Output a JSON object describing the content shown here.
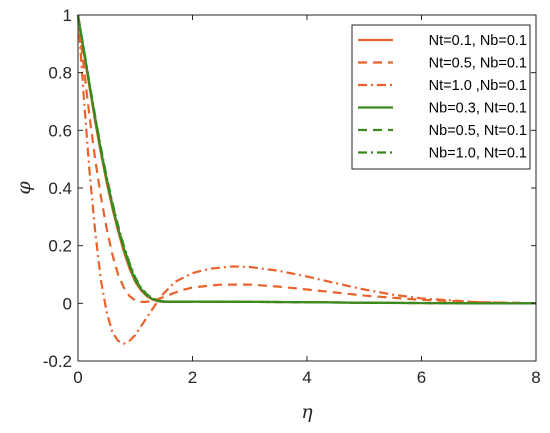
{
  "chart_data": {
    "type": "line",
    "title": "",
    "xlabel": "η",
    "ylabel": "φ",
    "xlim": [
      0,
      8
    ],
    "ylim": [
      -0.2,
      1
    ],
    "xticks": [
      "0",
      "2",
      "4",
      "6",
      "8"
    ],
    "yticks": [
      "-0.2",
      "0",
      "0.2",
      "0.4",
      "0.6",
      "0.8",
      "1"
    ],
    "grid": false,
    "legend_position": "top-right",
    "series": [
      {
        "name": "Nt=0.1, Nb=0.1",
        "color": "#e8622c",
        "dash": "solid",
        "x": [
          0,
          0.1,
          0.2,
          0.3,
          0.4,
          0.5,
          0.6,
          0.7,
          0.8,
          0.9,
          1.0,
          1.1,
          1.2,
          1.3,
          1.4,
          1.5,
          1.7,
          2.0,
          3.0,
          4.0,
          5.0,
          6.0,
          7.0,
          8.0
        ],
        "y": [
          1.0,
          0.87,
          0.75,
          0.63,
          0.52,
          0.42,
          0.33,
          0.25,
          0.18,
          0.12,
          0.075,
          0.045,
          0.025,
          0.013,
          0.007,
          0.005,
          0.005,
          0.006,
          0.005,
          0.004,
          0.002,
          0.001,
          0.0,
          0.0
        ]
      },
      {
        "name": "Nt=0.5, Nb=0.1",
        "color": "#e8622c",
        "dash": "dashed",
        "x": [
          0,
          0.1,
          0.2,
          0.3,
          0.4,
          0.5,
          0.6,
          0.7,
          0.8,
          0.9,
          1.0,
          1.1,
          1.2,
          1.3,
          1.4,
          1.6,
          1.8,
          2.0,
          2.5,
          3.0,
          3.5,
          4.0,
          5.0,
          6.0,
          7.0,
          8.0
        ],
        "y": [
          1.0,
          0.82,
          0.65,
          0.5,
          0.37,
          0.26,
          0.17,
          0.1,
          0.055,
          0.025,
          0.01,
          0.005,
          0.005,
          0.009,
          0.015,
          0.03,
          0.045,
          0.055,
          0.065,
          0.065,
          0.058,
          0.048,
          0.027,
          0.012,
          0.004,
          0.0
        ]
      },
      {
        "name": "Nt=1.0 ,Nb=0.1",
        "color": "#e8622c",
        "dash": "dashdot",
        "x": [
          0,
          0.1,
          0.2,
          0.3,
          0.4,
          0.5,
          0.6,
          0.7,
          0.8,
          0.9,
          1.0,
          1.1,
          1.2,
          1.3,
          1.4,
          1.5,
          1.7,
          2.0,
          2.3,
          2.7,
          3.0,
          3.5,
          4.0,
          4.5,
          5.0,
          5.5,
          6.0,
          7.0,
          8.0
        ],
        "y": [
          1.0,
          0.72,
          0.46,
          0.25,
          0.08,
          -0.03,
          -0.1,
          -0.13,
          -0.14,
          -0.13,
          -0.11,
          -0.08,
          -0.05,
          -0.02,
          0.01,
          0.035,
          0.075,
          0.105,
          0.12,
          0.128,
          0.126,
          0.113,
          0.093,
          0.07,
          0.048,
          0.03,
          0.017,
          0.004,
          0.0
        ]
      },
      {
        "name": "Nb=0.3, Nt=0.1",
        "color": "#3a8a1f",
        "dash": "solid",
        "x": [
          0,
          0.1,
          0.2,
          0.3,
          0.4,
          0.5,
          0.6,
          0.7,
          0.8,
          0.9,
          1.0,
          1.1,
          1.2,
          1.3,
          1.4,
          1.5,
          1.7,
          2.0,
          3.0,
          4.0,
          5.0,
          6.0,
          7.0,
          8.0
        ],
        "y": [
          1.0,
          0.88,
          0.76,
          0.64,
          0.53,
          0.43,
          0.34,
          0.26,
          0.19,
          0.13,
          0.08,
          0.05,
          0.028,
          0.015,
          0.008,
          0.006,
          0.005,
          0.006,
          0.005,
          0.004,
          0.002,
          0.001,
          0.0,
          0.0
        ]
      },
      {
        "name": "Nb=0.5, Nt=0.1",
        "color": "#3a8a1f",
        "dash": "dashed",
        "x": [
          0,
          0.1,
          0.2,
          0.3,
          0.4,
          0.5,
          0.6,
          0.7,
          0.8,
          0.9,
          1.0,
          1.1,
          1.2,
          1.3,
          1.4,
          1.5,
          1.7,
          2.0,
          3.0,
          4.0,
          5.0,
          6.0,
          7.0,
          8.0
        ],
        "y": [
          1.0,
          0.88,
          0.76,
          0.645,
          0.535,
          0.435,
          0.345,
          0.265,
          0.195,
          0.135,
          0.085,
          0.052,
          0.03,
          0.016,
          0.009,
          0.006,
          0.005,
          0.006,
          0.005,
          0.004,
          0.002,
          0.001,
          0.0,
          0.0
        ]
      },
      {
        "name": "Nb=1.0, Nt=0.1",
        "color": "#3a8a1f",
        "dash": "dashdot",
        "x": [
          0,
          0.1,
          0.2,
          0.3,
          0.4,
          0.5,
          0.6,
          0.7,
          0.8,
          0.9,
          1.0,
          1.1,
          1.2,
          1.3,
          1.4,
          1.5,
          1.7,
          2.0,
          3.0,
          4.0,
          5.0,
          6.0,
          7.0,
          8.0
        ],
        "y": [
          1.0,
          0.885,
          0.765,
          0.65,
          0.54,
          0.44,
          0.35,
          0.27,
          0.2,
          0.14,
          0.09,
          0.055,
          0.032,
          0.017,
          0.01,
          0.007,
          0.006,
          0.006,
          0.005,
          0.004,
          0.002,
          0.001,
          0.0,
          0.0
        ]
      }
    ]
  }
}
